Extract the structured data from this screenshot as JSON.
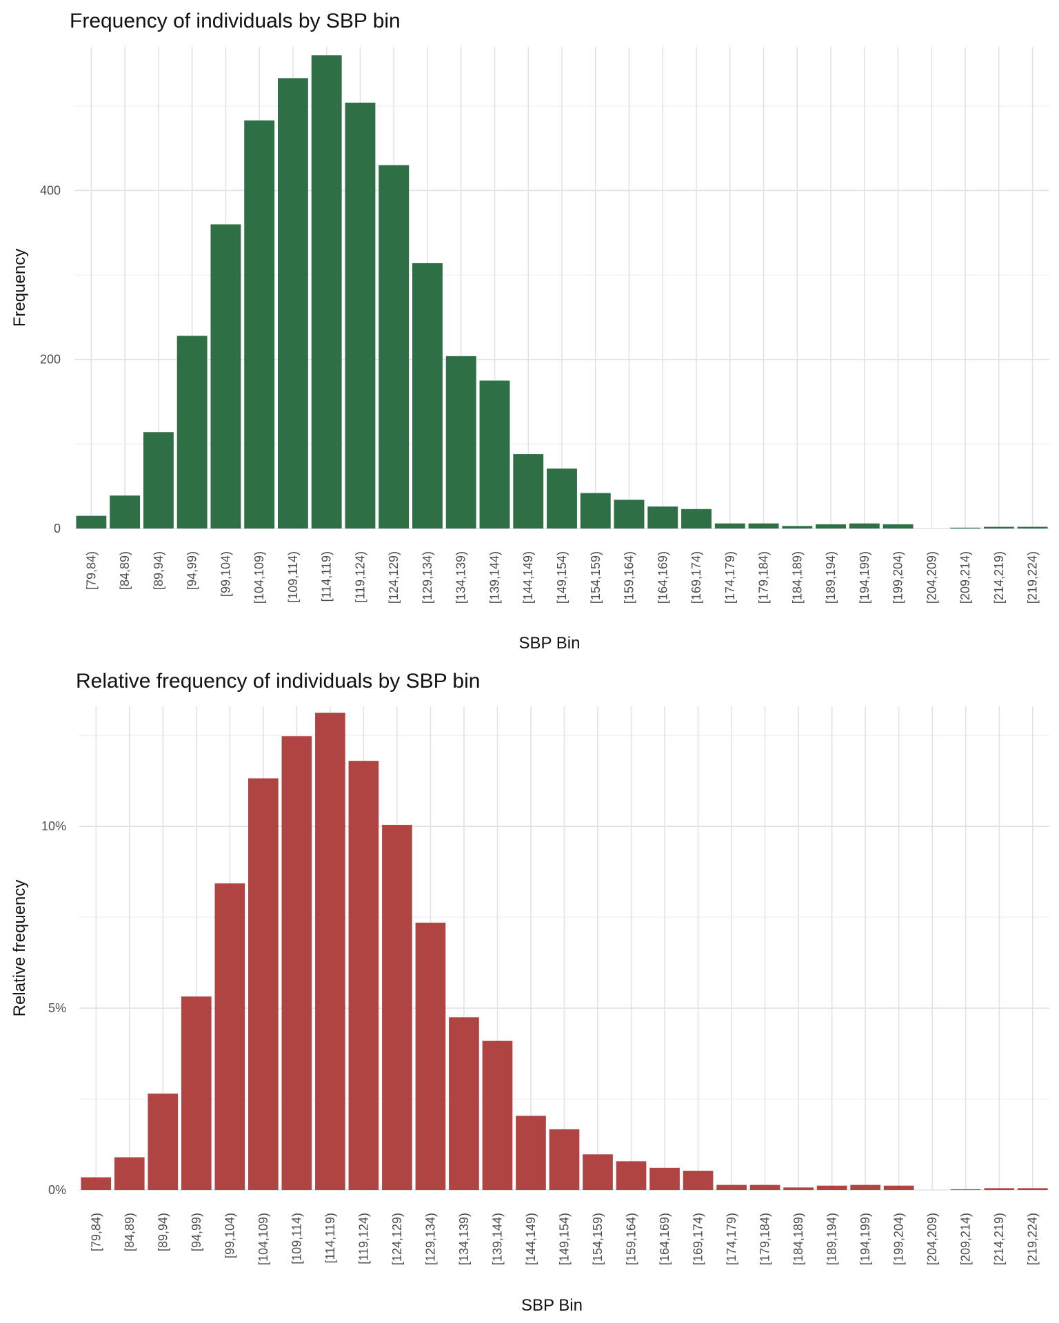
{
  "chart_data": [
    {
      "type": "bar",
      "title": "Frequency of individuals by SBP bin",
      "xlabel": "SBP Bin",
      "ylabel": "Frequency",
      "bar_color": "#2f6f45",
      "ylim": [
        0,
        570
      ],
      "y_ticks": [
        0,
        200,
        400
      ],
      "y_tick_labels": [
        "0",
        "200",
        "400"
      ],
      "y_minor_ticks": [
        100,
        300,
        500
      ],
      "grid": true,
      "categories": [
        "[79,84)",
        "[84,89)",
        "[89,94)",
        "[94,99)",
        "[99,104)",
        "[104,109)",
        "[109,114)",
        "[114,119)",
        "[119,124)",
        "[124,129)",
        "[129,134)",
        "[134,139)",
        "[139,144)",
        "[144,149)",
        "[149,154)",
        "[154,159)",
        "[159,164)",
        "[164,169)",
        "[169,174)",
        "[174,179)",
        "[179,184)",
        "[184,189)",
        "[189,194)",
        "[194,199)",
        "[199,204)",
        "[204,209)",
        "[209,214)",
        "[214,219)",
        "[219,224)"
      ],
      "values": [
        15,
        39,
        114,
        228,
        360,
        483,
        533,
        560,
        504,
        430,
        314,
        204,
        175,
        88,
        71,
        42,
        34,
        26,
        23,
        6,
        6,
        3,
        5,
        6,
        5,
        0,
        1,
        2,
        2
      ]
    },
    {
      "type": "bar",
      "title": "Relative frequency of individuals by SBP bin",
      "xlabel": "SBP Bin",
      "ylabel": "Relative frequency",
      "bar_color": "#b04442",
      "ylim": [
        0,
        13.3
      ],
      "y_ticks": [
        0,
        5,
        10
      ],
      "y_tick_labels": [
        "0%",
        "5%",
        "10%"
      ],
      "y_minor_ticks": [
        2.5,
        7.5,
        12.5
      ],
      "grid": true,
      "categories": [
        "[79,84)",
        "[84,89)",
        "[89,94)",
        "[94,99)",
        "[99,104)",
        "[104,109)",
        "[109,114)",
        "[114,119)",
        "[119,124)",
        "[124,129)",
        "[129,134)",
        "[134,139)",
        "[139,144)",
        "[144,149)",
        "[149,154)",
        "[154,159)",
        "[159,164)",
        "[164,169)",
        "[169,174)",
        "[174,179)",
        "[179,184)",
        "[184,189)",
        "[189,194)",
        "[194,199)",
        "[199,204)",
        "[204,209)",
        "[209,214)",
        "[214,219)",
        "[219,224)"
      ],
      "values": [
        0.35,
        0.9,
        2.65,
        5.32,
        8.43,
        11.32,
        12.48,
        13.12,
        11.8,
        10.04,
        7.35,
        4.75,
        4.1,
        2.04,
        1.67,
        0.98,
        0.79,
        0.61,
        0.53,
        0.14,
        0.14,
        0.07,
        0.12,
        0.14,
        0.12,
        0,
        0.02,
        0.05,
        0.05
      ]
    }
  ]
}
